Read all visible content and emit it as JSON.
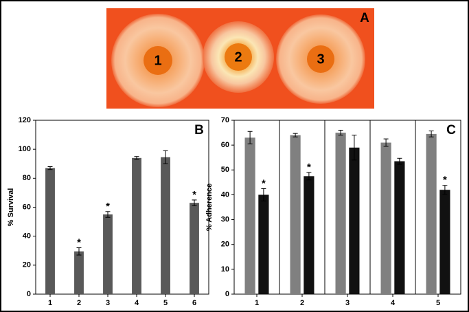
{
  "photo": {
    "label": "A",
    "spots": [
      "1",
      "2",
      "3"
    ]
  },
  "chart_data": [
    {
      "type": "bar",
      "label": "B",
      "y_label": "% Survival",
      "categories": [
        "1",
        "2",
        "3",
        "4",
        "5",
        "6"
      ],
      "values": [
        87,
        29.5,
        55,
        94,
        94.5,
        63
      ],
      "errors": [
        1,
        2.5,
        2,
        1,
        4.5,
        2
      ],
      "significance": [
        null,
        "*",
        "*",
        null,
        null,
        "*"
      ],
      "color": "#595959",
      "ylim": [
        0,
        120
      ],
      "yticks": [
        0,
        20,
        40,
        60,
        80,
        100,
        120
      ]
    },
    {
      "type": "bar",
      "label": "C",
      "y_label": "% Adherence",
      "categories": [
        "1",
        "2",
        "3",
        "4",
        "5"
      ],
      "series": [
        {
          "color": "#808080",
          "values": [
            63,
            64,
            65,
            61,
            64.5
          ],
          "errors": [
            2.5,
            0.7,
            1,
            1.5,
            1.2
          ],
          "significance": [
            null,
            null,
            null,
            null,
            null
          ]
        },
        {
          "color": "#111111",
          "values": [
            40,
            47.5,
            59,
            53.5,
            42
          ],
          "errors": [
            2.5,
            1.5,
            5,
            1.2,
            1.8
          ],
          "significance": [
            "*",
            "*",
            null,
            null,
            "*"
          ]
        }
      ],
      "group_dividers": true,
      "ylim": [
        0,
        70
      ],
      "yticks": [
        0,
        10,
        20,
        30,
        40,
        50,
        60,
        70
      ]
    }
  ]
}
